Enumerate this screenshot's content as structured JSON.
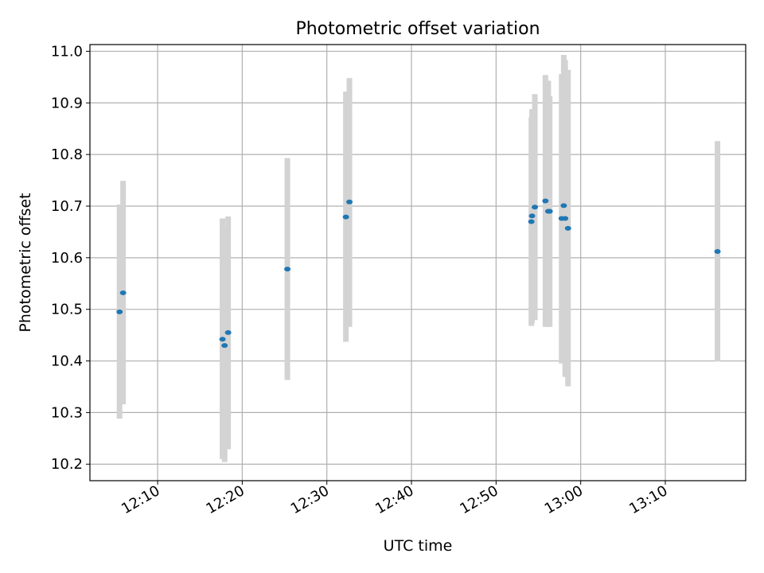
{
  "chart_data": {
    "type": "scatter",
    "title": "Photometric offset variation",
    "xlabel": "UTC time",
    "ylabel": "Photometric offset",
    "xlim": [
      "12:02:00",
      "13:19:30"
    ],
    "ylim": [
      10.168,
      11.013
    ],
    "grid": true,
    "x_ticks": [
      "12:10",
      "12:20",
      "12:30",
      "12:40",
      "12:50",
      "13:00",
      "13:10"
    ],
    "y_ticks": [
      10.2,
      10.3,
      10.4,
      10.5,
      10.6,
      10.7,
      10.8,
      10.9,
      11.0
    ],
    "y_tick_labels": [
      "10.2",
      "10.3",
      "10.4",
      "10.5",
      "10.6",
      "10.7",
      "10.8",
      "10.9",
      "11.0"
    ],
    "series": [
      {
        "marker_color": "#1f77b4",
        "errorbar_color": "#d3d3d3",
        "points": [
          {
            "x": "12:05:30",
            "y": 10.495,
            "ylow": 10.288,
            "yhigh": 10.703
          },
          {
            "x": "12:05:55",
            "y": 10.532,
            "ylow": 10.316,
            "yhigh": 10.749
          },
          {
            "x": "12:17:40",
            "y": 10.442,
            "ylow": 10.21,
            "yhigh": 10.676
          },
          {
            "x": "12:17:55",
            "y": 10.43,
            "ylow": 10.204,
            "yhigh": 10.658
          },
          {
            "x": "12:18:20",
            "y": 10.455,
            "ylow": 10.229,
            "yhigh": 10.68
          },
          {
            "x": "12:25:20",
            "y": 10.578,
            "ylow": 10.363,
            "yhigh": 10.793
          },
          {
            "x": "12:32:15",
            "y": 10.679,
            "ylow": 10.437,
            "yhigh": 10.922
          },
          {
            "x": "12:32:40",
            "y": 10.708,
            "ylow": 10.466,
            "yhigh": 10.948
          },
          {
            "x": "12:54:10",
            "y": 10.67,
            "ylow": 10.468,
            "yhigh": 10.872
          },
          {
            "x": "12:54:15",
            "y": 10.681,
            "ylow": 10.473,
            "yhigh": 10.888
          },
          {
            "x": "12:54:35",
            "y": 10.698,
            "ylow": 10.479,
            "yhigh": 10.917
          },
          {
            "x": "12:55:50",
            "y": 10.71,
            "ylow": 10.466,
            "yhigh": 10.954
          },
          {
            "x": "12:56:10",
            "y": 10.69,
            "ylow": 10.466,
            "yhigh": 10.943
          },
          {
            "x": "12:56:20",
            "y": 10.69,
            "ylow": 10.466,
            "yhigh": 10.913
          },
          {
            "x": "12:57:45",
            "y": 10.676,
            "ylow": 10.395,
            "yhigh": 10.956
          },
          {
            "x": "12:58:00",
            "y": 10.701,
            "ylow": 10.408,
            "yhigh": 10.993
          },
          {
            "x": "12:58:10",
            "y": 10.676,
            "ylow": 10.369,
            "yhigh": 10.983
          },
          {
            "x": "12:58:30",
            "y": 10.657,
            "ylow": 10.351,
            "yhigh": 10.964
          },
          {
            "x": "13:16:10",
            "y": 10.612,
            "ylow": 10.399,
            "yhigh": 10.826
          }
        ]
      }
    ]
  }
}
